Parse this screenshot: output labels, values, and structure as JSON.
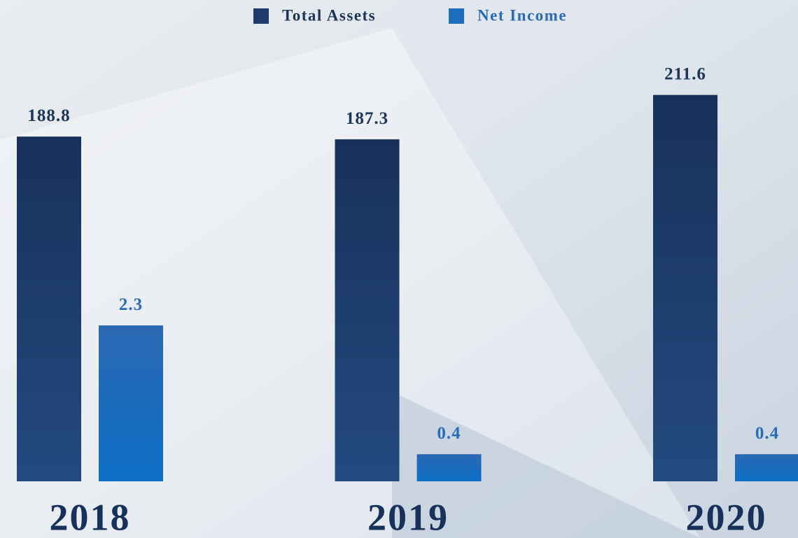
{
  "chart_data": {
    "type": "bar",
    "categories": [
      "2018",
      "2019",
      "2020"
    ],
    "series": [
      {
        "name": "Total Assets",
        "color": "#1d3c6a",
        "values": [
          188.8,
          187.3,
          211.6
        ]
      },
      {
        "name": "Net Income",
        "color": "#1f6dbe",
        "axis": "y2",
        "values": [
          2.3,
          0.4,
          0.4
        ]
      }
    ],
    "ylim": [
      0,
      263.6
    ],
    "y2lim": [
      0,
      7.1
    ],
    "legend": "top"
  }
}
